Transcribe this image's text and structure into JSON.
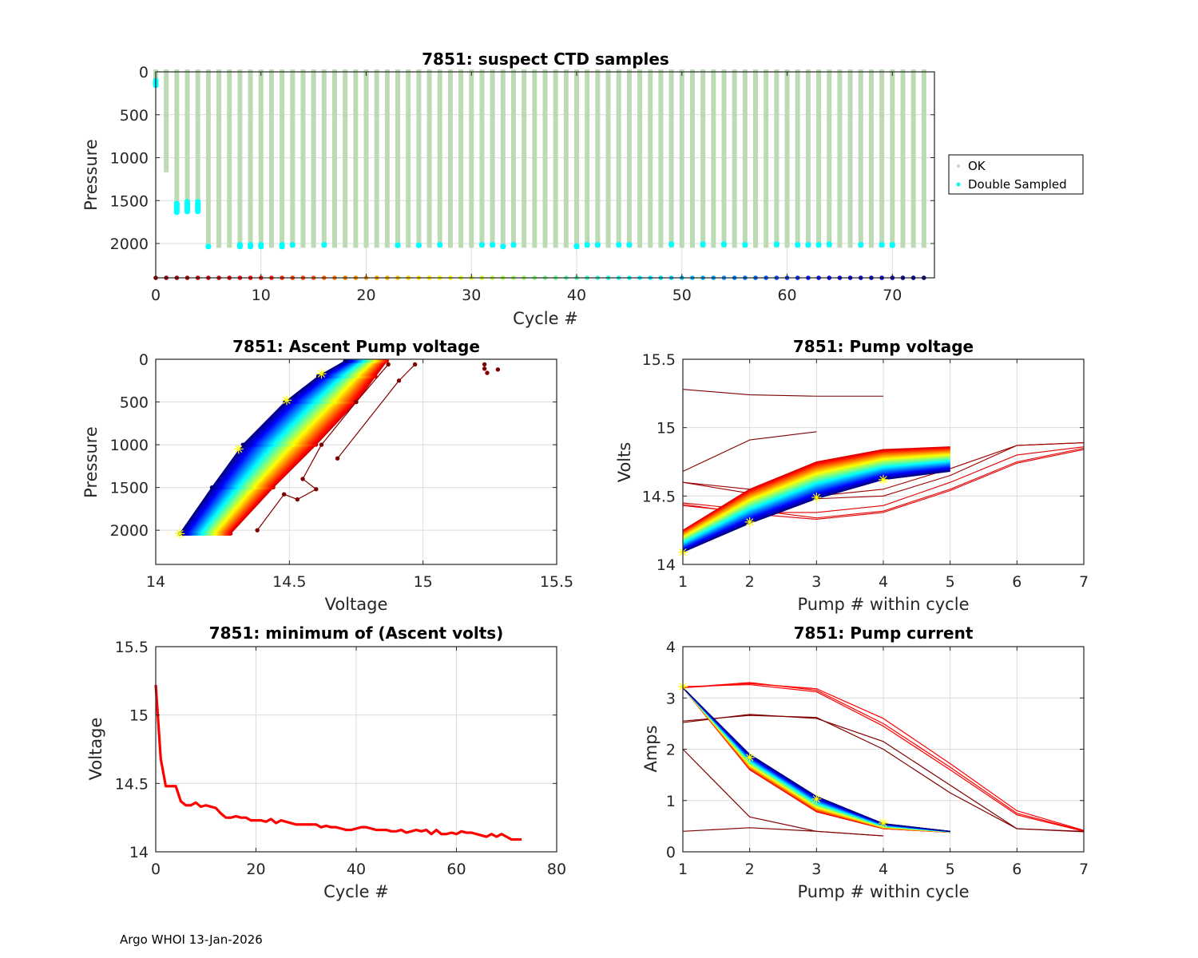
{
  "footer": "Argo WHOI 13-Jan-2026",
  "colors": {
    "ok": "#bcdbb4",
    "double_sampled": "#00ffff",
    "min_volts_line": "#ff0000",
    "marker": "#ffff00",
    "outlier": "#800000"
  },
  "chart_data": [
    {
      "id": "suspect-ctd",
      "type": "scatter",
      "title": "7851: suspect CTD samples",
      "xlabel": "Cycle #",
      "ylabel": "Pressure",
      "xlim": [
        0,
        74
      ],
      "ylim": [
        0,
        2400
      ],
      "y_reversed": true,
      "xticks": [
        0,
        10,
        20,
        30,
        40,
        50,
        60,
        70
      ],
      "yticks": [
        0,
        500,
        1000,
        1500,
        2000
      ],
      "grid": true,
      "legend": {
        "placement": "outside-right",
        "entries": [
          "OK",
          "Double Sampled"
        ]
      },
      "cycles": [
        0,
        1,
        2,
        3,
        4,
        5,
        6,
        7,
        8,
        9,
        10,
        11,
        12,
        13,
        14,
        15,
        16,
        17,
        18,
        19,
        20,
        21,
        22,
        23,
        24,
        25,
        26,
        27,
        28,
        29,
        30,
        31,
        32,
        33,
        34,
        35,
        36,
        37,
        38,
        39,
        40,
        41,
        42,
        43,
        44,
        45,
        46,
        47,
        48,
        49,
        50,
        51,
        52,
        53,
        54,
        55,
        56,
        57,
        58,
        59,
        60,
        61,
        62,
        63,
        64,
        65,
        66,
        67,
        68,
        69,
        70,
        71,
        72,
        73
      ],
      "profile_max_pressure": [
        150,
        1170,
        1640,
        1630,
        1640,
        2050,
        2050,
        2050,
        2050,
        2050,
        2050,
        2050,
        2050,
        2050,
        2050,
        2050,
        2050,
        2050,
        2050,
        2050,
        2050,
        2050,
        2050,
        2050,
        2050,
        2050,
        2050,
        2050,
        2050,
        2050,
        2050,
        2050,
        2050,
        2050,
        2050,
        2050,
        2050,
        2050,
        2050,
        2050,
        2050,
        2050,
        2050,
        2050,
        2050,
        2050,
        2050,
        2050,
        2050,
        2050,
        2050,
        2050,
        2050,
        2050,
        2050,
        2050,
        2050,
        2050,
        2050,
        2050,
        2050,
        2050,
        2050,
        2050,
        2050,
        2050,
        2050,
        2050,
        2050,
        2050,
        2050,
        2050,
        2050,
        2050
      ],
      "double_sampled": [
        {
          "cycle": 0,
          "p_from": 100,
          "p_to": 160
        },
        {
          "cycle": 2,
          "p_from": 1530,
          "p_to": 1640
        },
        {
          "cycle": 3,
          "p_from": 1510,
          "p_to": 1630
        },
        {
          "cycle": 4,
          "p_from": 1510,
          "p_to": 1630
        },
        {
          "cycle": 5,
          "p_from": 2030,
          "p_to": 2040
        },
        {
          "cycle": 8,
          "p_from": 2010,
          "p_to": 2040
        },
        {
          "cycle": 9,
          "p_from": 2010,
          "p_to": 2040
        },
        {
          "cycle": 10,
          "p_from": 2010,
          "p_to": 2040
        },
        {
          "cycle": 12,
          "p_from": 2010,
          "p_to": 2040
        },
        {
          "cycle": 13,
          "p_from": 2010,
          "p_to": 2020
        },
        {
          "cycle": 16,
          "p_from": 2010,
          "p_to": 2020
        },
        {
          "cycle": 23,
          "p_from": 2015,
          "p_to": 2025
        },
        {
          "cycle": 25,
          "p_from": 2015,
          "p_to": 2025
        },
        {
          "cycle": 27,
          "p_from": 2010,
          "p_to": 2020
        },
        {
          "cycle": 31,
          "p_from": 2010,
          "p_to": 2020
        },
        {
          "cycle": 32,
          "p_from": 2010,
          "p_to": 2020
        },
        {
          "cycle": 33,
          "p_from": 2030,
          "p_to": 2040
        },
        {
          "cycle": 34,
          "p_from": 2010,
          "p_to": 2020
        },
        {
          "cycle": 40,
          "p_from": 2025,
          "p_to": 2040
        },
        {
          "cycle": 41,
          "p_from": 2010,
          "p_to": 2020
        },
        {
          "cycle": 42,
          "p_from": 2010,
          "p_to": 2020
        },
        {
          "cycle": 44,
          "p_from": 2010,
          "p_to": 2020
        },
        {
          "cycle": 45,
          "p_from": 2010,
          "p_to": 2020
        },
        {
          "cycle": 49,
          "p_from": 2005,
          "p_to": 2015
        },
        {
          "cycle": 52,
          "p_from": 2005,
          "p_to": 2015
        },
        {
          "cycle": 54,
          "p_from": 2005,
          "p_to": 2015
        },
        {
          "cycle": 56,
          "p_from": 2010,
          "p_to": 2020
        },
        {
          "cycle": 59,
          "p_from": 2005,
          "p_to": 2015
        },
        {
          "cycle": 61,
          "p_from": 2010,
          "p_to": 2020
        },
        {
          "cycle": 62,
          "p_from": 2010,
          "p_to": 2020
        },
        {
          "cycle": 63,
          "p_from": 2010,
          "p_to": 2020
        },
        {
          "cycle": 64,
          "p_from": 2005,
          "p_to": 2015
        },
        {
          "cycle": 67,
          "p_from": 2010,
          "p_to": 2020
        },
        {
          "cycle": 69,
          "p_from": 2010,
          "p_to": 2020
        },
        {
          "cycle": 70,
          "p_from": 2010,
          "p_to": 2025
        }
      ],
      "cycle_markers_pressure": 2400
    },
    {
      "id": "ascent-pump-voltage",
      "type": "line",
      "title": "7851: Ascent Pump voltage",
      "xlabel": "Voltage",
      "ylabel": "Pressure",
      "xlim": [
        14,
        15.5
      ],
      "ylim": [
        0,
        2400
      ],
      "y_reversed": true,
      "xticks": [
        14,
        14.5,
        15,
        15.5
      ],
      "yticks": [
        0,
        500,
        1000,
        1500,
        2000
      ],
      "grid": true,
      "colormap": "jet (by cycle)",
      "series_envelope": {
        "first_cycles_volts_at": {
          "pressure": [
            2000,
            1000,
            500,
            0
          ],
          "volts": [
            14.28,
            14.6,
            14.75,
            14.87
          ]
        },
        "last_cycles_volts_at": {
          "pressure": [
            2040,
            1050,
            480,
            170,
            0
          ],
          "volts": [
            14.09,
            14.31,
            14.49,
            14.62,
            14.72
          ]
        }
      },
      "outliers": [
        {
          "name": "cycle-1",
          "pressure": [
            1160,
            250,
            60
          ],
          "volts": [
            14.68,
            14.91,
            14.97
          ]
        },
        {
          "name": "cycle-0",
          "pressure": [
            60,
            110,
            160,
            120
          ],
          "volts": [
            15.23,
            15.23,
            15.24,
            15.28
          ]
        },
        {
          "name": "cycle-2",
          "pressure": [
            2000,
            1580,
            1640,
            1520,
            1400,
            1000,
            500,
            60
          ],
          "volts": [
            14.38,
            14.48,
            14.53,
            14.6,
            14.55,
            14.62,
            14.75,
            14.87
          ]
        }
      ],
      "starred_points": [
        {
          "volts": 14.09,
          "pressure": 2040
        },
        {
          "volts": 14.31,
          "pressure": 1050
        },
        {
          "volts": 14.49,
          "pressure": 480
        },
        {
          "volts": 14.62,
          "pressure": 170
        }
      ]
    },
    {
      "id": "pump-voltage",
      "type": "line",
      "title": "7851: Pump voltage",
      "xlabel": "Pump # within cycle",
      "ylabel": "Volts",
      "xlim": [
        1,
        7
      ],
      "ylim": [
        14,
        15.5
      ],
      "xticks": [
        1,
        2,
        3,
        4,
        5,
        6,
        7
      ],
      "yticks": [
        14,
        14.5,
        15,
        15.5
      ],
      "grid": true,
      "colormap": "jet (by cycle)",
      "bundle": {
        "pump": [
          1,
          2,
          3,
          4,
          5
        ],
        "first_volts": [
          14.25,
          14.55,
          14.75,
          14.84,
          14.86
        ],
        "last_volts": [
          14.09,
          14.3,
          14.48,
          14.62,
          14.68
        ]
      },
      "outliers": [
        {
          "name": "cycle-0",
          "pump": [
            1,
            2,
            3,
            4
          ],
          "volts": [
            15.28,
            15.24,
            15.23,
            15.23
          ]
        },
        {
          "name": "cycle-1",
          "pump": [
            1,
            2,
            3
          ],
          "volts": [
            14.68,
            14.91,
            14.97
          ]
        },
        {
          "name": "early-a",
          "pump": [
            1,
            2,
            3,
            4,
            5,
            6,
            7
          ],
          "volts": [
            14.6,
            14.55,
            14.5,
            14.55,
            14.7,
            14.87,
            14.89
          ]
        },
        {
          "name": "early-b",
          "pump": [
            1,
            2,
            3,
            4,
            5,
            6,
            7
          ],
          "volts": [
            14.6,
            14.52,
            14.48,
            14.5,
            14.65,
            14.87,
            14.89
          ]
        },
        {
          "name": "early-c",
          "pump": [
            1,
            2,
            3,
            4,
            5,
            6,
            7
          ],
          "volts": [
            14.45,
            14.4,
            14.34,
            14.39,
            14.55,
            14.75,
            14.85
          ]
        },
        {
          "name": "early-d",
          "pump": [
            1,
            2,
            3,
            4,
            5,
            6,
            7
          ],
          "volts": [
            14.44,
            14.37,
            14.33,
            14.38,
            14.54,
            14.74,
            14.84
          ]
        },
        {
          "name": "early-e",
          "pump": [
            1,
            2,
            3,
            4,
            5,
            6,
            7
          ],
          "volts": [
            14.43,
            14.38,
            14.38,
            14.43,
            14.6,
            14.8,
            14.86
          ]
        }
      ],
      "starred_points": [
        {
          "pump": 1,
          "volts": 14.09
        },
        {
          "pump": 2,
          "volts": 14.31
        },
        {
          "pump": 3,
          "volts": 14.49
        },
        {
          "pump": 4,
          "volts": 14.62
        }
      ]
    },
    {
      "id": "min-ascent-volts",
      "type": "line",
      "title": "7851: minimum of (Ascent volts)",
      "xlabel": "Cycle #",
      "ylabel": "Voltage",
      "xlim": [
        0,
        80
      ],
      "ylim": [
        14,
        15.5
      ],
      "xticks": [
        0,
        20,
        40,
        60,
        80
      ],
      "yticks": [
        14,
        14.5,
        15,
        15.5
      ],
      "grid": true,
      "x": [
        0,
        1,
        2,
        3,
        4,
        5,
        6,
        7,
        8,
        9,
        10,
        11,
        12,
        13,
        14,
        15,
        16,
        17,
        18,
        19,
        20,
        21,
        22,
        23,
        24,
        25,
        26,
        27,
        28,
        29,
        30,
        31,
        32,
        33,
        34,
        35,
        36,
        37,
        38,
        39,
        40,
        41,
        42,
        43,
        44,
        45,
        46,
        47,
        48,
        49,
        50,
        51,
        52,
        53,
        54,
        55,
        56,
        57,
        58,
        59,
        60,
        61,
        62,
        63,
        64,
        65,
        66,
        67,
        68,
        69,
        70,
        71,
        72,
        73
      ],
      "values": [
        15.22,
        14.68,
        14.48,
        14.48,
        14.48,
        14.37,
        14.34,
        14.34,
        14.36,
        14.33,
        14.34,
        14.33,
        14.32,
        14.28,
        14.25,
        14.25,
        14.26,
        14.25,
        14.25,
        14.23,
        14.23,
        14.23,
        14.22,
        14.24,
        14.21,
        14.23,
        14.22,
        14.21,
        14.2,
        14.2,
        14.2,
        14.2,
        14.2,
        14.18,
        14.19,
        14.18,
        14.18,
        14.17,
        14.16,
        14.16,
        14.17,
        14.18,
        14.18,
        14.17,
        14.16,
        14.16,
        14.16,
        14.15,
        14.15,
        14.16,
        14.14,
        14.15,
        14.16,
        14.15,
        14.16,
        14.13,
        14.16,
        14.13,
        14.13,
        14.14,
        14.13,
        14.15,
        14.14,
        14.14,
        14.13,
        14.12,
        14.11,
        14.13,
        14.11,
        14.13,
        14.11,
        14.09,
        14.09,
        14.09
      ]
    },
    {
      "id": "pump-current",
      "type": "line",
      "title": "7851: Pump current",
      "xlabel": "Pump # within cycle",
      "ylabel": "Amps",
      "xlim": [
        1,
        7
      ],
      "ylim": [
        0,
        4
      ],
      "xticks": [
        1,
        2,
        3,
        4,
        5,
        6,
        7
      ],
      "yticks": [
        0,
        1,
        2,
        3,
        4
      ],
      "grid": true,
      "colormap": "jet (by cycle)",
      "bundle": {
        "pump": [
          1,
          2,
          3,
          4,
          5
        ],
        "first_amps": [
          3.2,
          1.6,
          0.78,
          0.45,
          0.38
        ],
        "last_amps": [
          3.2,
          1.9,
          1.08,
          0.55,
          0.4
        ]
      },
      "outliers": [
        {
          "name": "early-red-a",
          "pump": [
            1,
            2,
            3,
            4,
            5,
            6,
            7
          ],
          "amps": [
            3.2,
            3.28,
            3.18,
            2.6,
            1.72,
            0.8,
            0.42
          ]
        },
        {
          "name": "early-red-b",
          "pump": [
            1,
            2,
            3,
            4,
            5,
            6,
            7
          ],
          "amps": [
            3.22,
            3.26,
            3.12,
            2.45,
            1.6,
            0.72,
            0.4
          ]
        },
        {
          "name": "early-red-c",
          "pump": [
            1,
            2,
            3,
            4,
            5,
            6,
            7
          ],
          "amps": [
            3.2,
            3.3,
            3.15,
            2.5,
            1.65,
            0.75,
            0.41
          ]
        },
        {
          "name": "dark-a",
          "pump": [
            1,
            2,
            3,
            4,
            5,
            6,
            7
          ],
          "amps": [
            2.52,
            2.68,
            2.6,
            2.15,
            1.3,
            0.45,
            0.4
          ]
        },
        {
          "name": "dark-b",
          "pump": [
            1,
            2,
            3,
            4,
            5,
            6,
            7
          ],
          "amps": [
            2.55,
            2.66,
            2.62,
            2.0,
            1.15,
            0.45,
            0.39
          ]
        },
        {
          "name": "cycle-1",
          "pump": [
            1,
            2,
            3,
            4
          ],
          "amps": [
            2.0,
            0.68,
            0.4,
            0.31
          ]
        },
        {
          "name": "cycle-0",
          "pump": [
            1,
            2,
            3,
            4
          ],
          "amps": [
            0.4,
            0.47,
            0.4,
            0.31
          ]
        }
      ],
      "starred_points": [
        {
          "pump": 1,
          "amps": 3.22
        },
        {
          "pump": 2,
          "amps": 1.84
        },
        {
          "pump": 3,
          "amps": 1.03
        },
        {
          "pump": 4,
          "amps": 0.56
        }
      ]
    }
  ]
}
